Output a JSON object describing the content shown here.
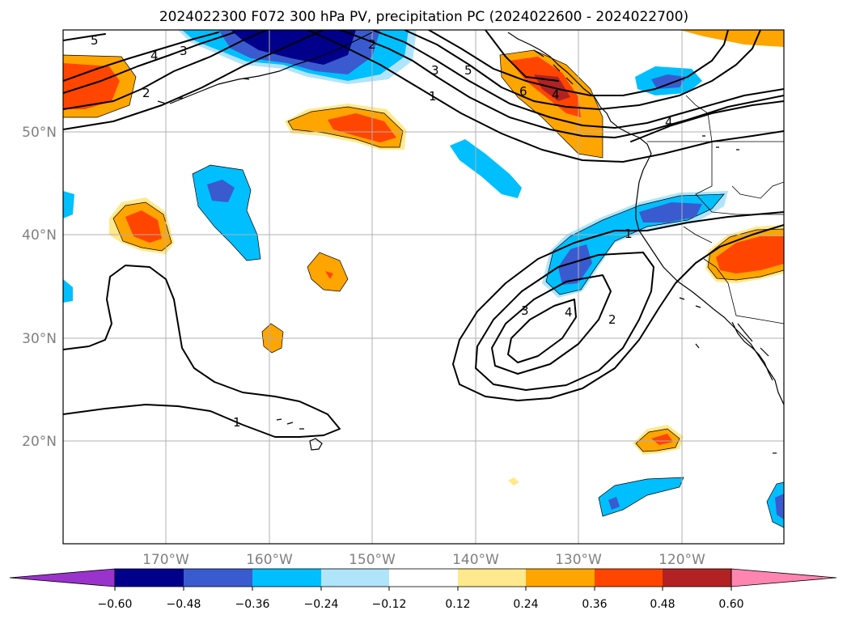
{
  "title": "2024022300 F072 300 hPa PV, precipitation PC (2024022600 - 2024022700)",
  "lat_labels": [
    "50°N",
    "40°N",
    "30°N",
    "20°N"
  ],
  "lon_labels": [
    "170°W",
    "160°W",
    "150°W",
    "140°W",
    "130°W",
    "120°W"
  ],
  "colorbar": {
    "tick_labels": [
      "−0.60",
      "−0.48",
      "−0.36",
      "−0.24",
      "−0.12",
      "0.12",
      "0.24",
      "0.36",
      "0.48",
      "0.60"
    ],
    "under_color": "#9933cc",
    "colors": [
      "#00008b",
      "#3a5bcf",
      "#00bfff",
      "#b0e4fa",
      "#ffffff",
      "#ffe98c",
      "#ffa500",
      "#ff4500",
      "#b22222"
    ],
    "over_color": "#ff85b0"
  },
  "contour_labels": {
    "nw_5": "5",
    "nw_4": "4",
    "nw_3": "3",
    "nw_2": "2",
    "c_2": "2",
    "c_3": "3",
    "c_1": "1",
    "c_5": "5",
    "c_6": "6",
    "c_4a": "4",
    "e_4": "4",
    "se_1": "1",
    "cut_3": "3",
    "cut_4": "4",
    "cut_2": "2",
    "sw_1": "1"
  }
}
